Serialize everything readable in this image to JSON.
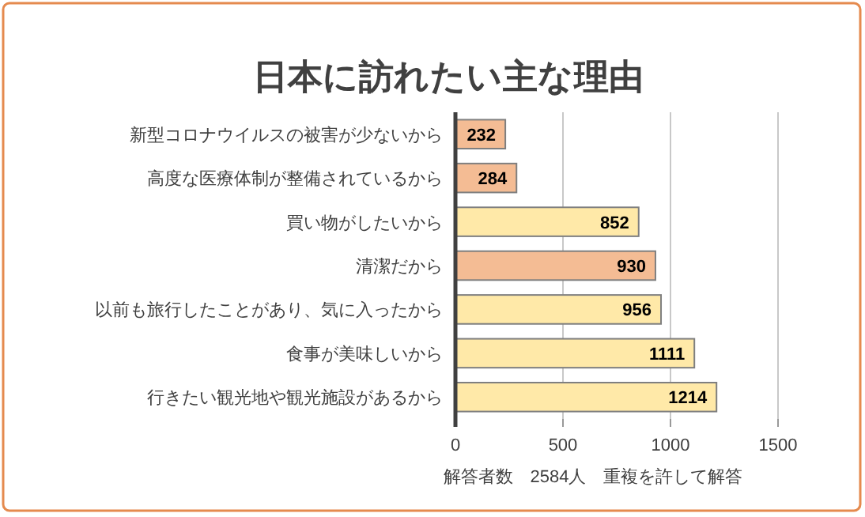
{
  "chart_data": {
    "type": "bar",
    "orientation": "horizontal",
    "title": "日本に訪れたい主な理由",
    "xlabel": "解答者数　2584人　重複を許して解答",
    "categories": [
      "新型コロナウイルスの被害が少ないから",
      "高度な医療体制が整備されているから",
      "買い物がしたいから",
      "清潔だから",
      "以前も旅行したことがあり、気に入ったから",
      "食事が美味しいから",
      "行きたい観光地や観光施設があるから"
    ],
    "values": [
      232,
      284,
      852,
      930,
      956,
      1111,
      1214
    ],
    "colors": [
      "#f4bc94",
      "#f4bc94",
      "#ffe9a8",
      "#f4bc94",
      "#ffe9a8",
      "#ffe9a8",
      "#ffe9a8"
    ],
    "xlim": [
      0,
      1500
    ],
    "xticks": [
      0,
      500,
      1000,
      1500
    ],
    "grid": "x",
    "data_labels": true
  }
}
